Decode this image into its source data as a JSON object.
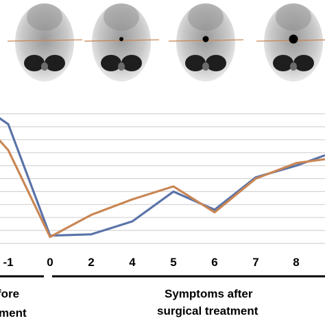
{
  "chart_data": {
    "type": "line",
    "x_categories": [
      "-1",
      "0",
      "2",
      "4",
      "5",
      "6",
      "7",
      "8",
      ""
    ],
    "series": [
      {
        "color": "#5a73a8",
        "values": [
          92,
          6,
          7,
          17,
          40,
          26,
          51,
          60
        ]
      },
      {
        "color": "#c98654",
        "values": [
          72,
          5,
          22,
          34,
          44,
          24,
          50,
          62
        ]
      }
    ],
    "ylim": [
      0,
      100
    ],
    "grid": true,
    "phase_labels": {
      "before_line1": "fore",
      "before_line2": "ment",
      "after_line1": "Symptoms after",
      "after_line2": "surgical treatment"
    },
    "scan_thumbnails": [
      {
        "lesion": "none"
      },
      {
        "lesion": "small"
      },
      {
        "lesion": "medium"
      },
      {
        "lesion": "large"
      }
    ]
  },
  "series_points": {
    "blue": [
      [
        "-1.3",
        100
      ],
      [
        "-1",
        92
      ],
      [
        "0",
        6
      ],
      [
        "2",
        7
      ],
      [
        "4",
        17
      ],
      [
        "5",
        40
      ],
      [
        "6",
        26
      ],
      [
        "7",
        51
      ],
      [
        "8",
        60
      ]
    ],
    "orange": [
      [
        "-1.3",
        85
      ],
      [
        "-1",
        72
      ],
      [
        "0",
        5
      ],
      [
        "2",
        22
      ],
      [
        "4",
        34
      ],
      [
        "5",
        44
      ],
      [
        "6",
        24
      ],
      [
        "7",
        50
      ],
      [
        "8",
        62
      ]
    ]
  }
}
